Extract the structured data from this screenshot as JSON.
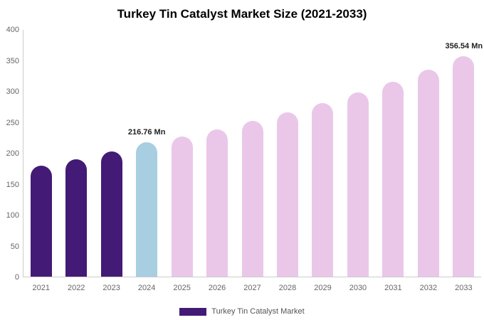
{
  "chart_data": {
    "type": "bar",
    "title": "Turkey Tin Catalyst Market Size (2021-2033)",
    "categories": [
      "2021",
      "2022",
      "2023",
      "2024",
      "2025",
      "2026",
      "2027",
      "2028",
      "2029",
      "2030",
      "2031",
      "2032",
      "2033"
    ],
    "values": [
      179,
      190,
      202,
      216.76,
      226,
      238,
      252,
      266,
      281,
      298,
      315,
      334,
      356.54
    ],
    "unit": "Mn",
    "bar_colors": [
      "#431A75",
      "#431A75",
      "#431A75",
      "#A8CEE2",
      "#EAC7E9",
      "#EAC7E9",
      "#EAC7E9",
      "#EAC7E9",
      "#EAC7E9",
      "#EAC7E9",
      "#EAC7E9",
      "#EAC7E9",
      "#EAC7E9"
    ],
    "ylim": [
      0,
      400
    ],
    "yticks": [
      0,
      50,
      100,
      150,
      200,
      250,
      300,
      350,
      400
    ],
    "xlabel": "",
    "ylabel": "",
    "grid": false,
    "annotations": [
      {
        "category": "2024",
        "text": "216.76 Mn",
        "align": "center"
      },
      {
        "category": "2033",
        "text": "356.54 Mn",
        "align": "right"
      }
    ],
    "legend": {
      "label": "Turkey Tin Catalyst Market",
      "position": "bottom",
      "swatch_color": "#431A75"
    },
    "axis_color": "#cccccc",
    "tick_text_color": "#666666"
  }
}
